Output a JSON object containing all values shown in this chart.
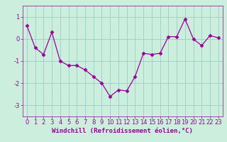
{
  "x": [
    0,
    1,
    2,
    3,
    4,
    5,
    6,
    7,
    8,
    9,
    10,
    11,
    12,
    13,
    14,
    15,
    16,
    17,
    18,
    19,
    20,
    21,
    22,
    23
  ],
  "y": [
    0.6,
    -0.4,
    -0.7,
    0.3,
    -1.0,
    -1.2,
    -1.2,
    -1.4,
    -1.7,
    -2.0,
    -2.6,
    -2.3,
    -2.35,
    -1.7,
    -0.65,
    -0.7,
    -0.65,
    0.1,
    0.1,
    0.9,
    0.0,
    -0.3,
    0.15,
    0.05
  ],
  "line_color": "#990099",
  "marker": "D",
  "marker_size": 2.5,
  "bg_color": "#cceedd",
  "grid_color": "#99cccc",
  "xlabel": "Windchill (Refroidissement éolien,°C)",
  "xlabel_fontsize": 6.5,
  "tick_fontsize": 6.0,
  "ylim": [
    -3.5,
    1.5
  ],
  "yticks": [
    -3,
    -2,
    -1,
    0,
    1
  ],
  "xlim": [
    -0.5,
    23.5
  ],
  "xticks": [
    0,
    1,
    2,
    3,
    4,
    5,
    6,
    7,
    8,
    9,
    10,
    11,
    12,
    13,
    14,
    15,
    16,
    17,
    18,
    19,
    20,
    21,
    22,
    23
  ]
}
